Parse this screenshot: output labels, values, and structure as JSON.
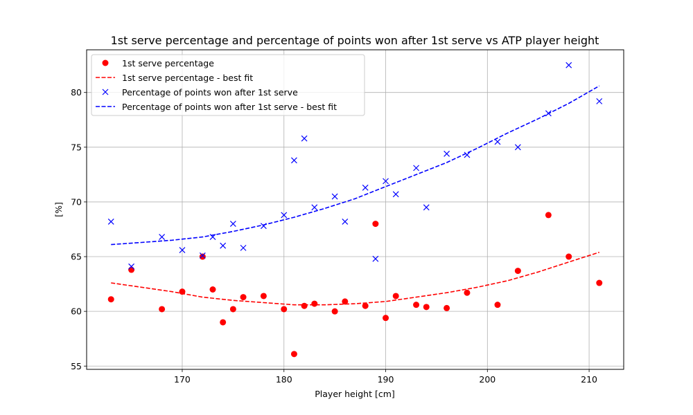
{
  "chart_data": {
    "type": "scatter",
    "title": "1st serve percentage and percentage of points won after 1st serve vs ATP player height",
    "xlabel": "Player height [cm]",
    "ylabel": "[%]",
    "xlim": [
      160.6,
      213.4
    ],
    "ylim": [
      54.7,
      83.9
    ],
    "xticks": [
      170,
      180,
      190,
      200,
      210
    ],
    "yticks": [
      55,
      60,
      65,
      70,
      75,
      80
    ],
    "grid": true,
    "legend_position": "top-left",
    "series": [
      {
        "name": "1st serve percentage",
        "kind": "scatter",
        "marker": "circle",
        "color": "#ff0000",
        "points": [
          [
            163,
            61.1
          ],
          [
            165,
            63.8
          ],
          [
            168,
            60.2
          ],
          [
            170,
            61.8
          ],
          [
            172,
            65.0
          ],
          [
            173,
            62.0
          ],
          [
            174,
            59.0
          ],
          [
            175,
            60.2
          ],
          [
            176,
            61.3
          ],
          [
            178,
            61.4
          ],
          [
            180,
            60.2
          ],
          [
            181,
            56.1
          ],
          [
            182,
            60.5
          ],
          [
            183,
            60.7
          ],
          [
            185,
            60.0
          ],
          [
            186,
            60.9
          ],
          [
            188,
            60.5
          ],
          [
            189,
            68.0
          ],
          [
            190,
            59.4
          ],
          [
            191,
            61.4
          ],
          [
            193,
            60.6
          ],
          [
            194,
            60.4
          ],
          [
            196,
            60.3
          ],
          [
            198,
            61.7
          ],
          [
            201,
            60.6
          ],
          [
            203,
            63.7
          ],
          [
            206,
            68.8
          ],
          [
            208,
            65.0
          ],
          [
            211,
            62.6
          ]
        ]
      },
      {
        "name": "1st serve percentage - best fit",
        "kind": "line",
        "style": "dashed",
        "color": "#ff0000",
        "points": [
          [
            163,
            62.6
          ],
          [
            166,
            62.2
          ],
          [
            169,
            61.8
          ],
          [
            172,
            61.3
          ],
          [
            175,
            61.0
          ],
          [
            178,
            60.8
          ],
          [
            181,
            60.6
          ],
          [
            184,
            60.6
          ],
          [
            187,
            60.7
          ],
          [
            190,
            60.9
          ],
          [
            193,
            61.3
          ],
          [
            196,
            61.7
          ],
          [
            199,
            62.2
          ],
          [
            202,
            62.8
          ],
          [
            205,
            63.6
          ],
          [
            208,
            64.5
          ],
          [
            211,
            65.4
          ]
        ]
      },
      {
        "name": "Percentage of points won after 1st serve",
        "kind": "scatter",
        "marker": "x",
        "color": "#0000ff",
        "points": [
          [
            163,
            68.2
          ],
          [
            165,
            64.1
          ],
          [
            168,
            66.8
          ],
          [
            170,
            65.6
          ],
          [
            172,
            65.1
          ],
          [
            173,
            66.8
          ],
          [
            174,
            66.0
          ],
          [
            175,
            68.0
          ],
          [
            176,
            65.8
          ],
          [
            178,
            67.8
          ],
          [
            180,
            68.8
          ],
          [
            181,
            73.8
          ],
          [
            182,
            75.8
          ],
          [
            183,
            69.5
          ],
          [
            185,
            70.5
          ],
          [
            186,
            68.2
          ],
          [
            188,
            71.3
          ],
          [
            189,
            64.8
          ],
          [
            190,
            71.9
          ],
          [
            191,
            70.7
          ],
          [
            193,
            73.1
          ],
          [
            194,
            69.5
          ],
          [
            196,
            74.4
          ],
          [
            198,
            74.3
          ],
          [
            201,
            75.5
          ],
          [
            203,
            75.0
          ],
          [
            206,
            78.1
          ],
          [
            208,
            82.5
          ],
          [
            211,
            79.2
          ]
        ]
      },
      {
        "name": "Percentage of points won after 1st serve - best fit",
        "kind": "line",
        "style": "dashed",
        "color": "#0000ff",
        "points": [
          [
            163,
            66.1
          ],
          [
            166,
            66.3
          ],
          [
            169,
            66.5
          ],
          [
            172,
            66.8
          ],
          [
            175,
            67.3
          ],
          [
            178,
            67.9
          ],
          [
            181,
            68.6
          ],
          [
            184,
            69.4
          ],
          [
            187,
            70.3
          ],
          [
            190,
            71.4
          ],
          [
            193,
            72.5
          ],
          [
            196,
            73.6
          ],
          [
            199,
            74.9
          ],
          [
            202,
            76.3
          ],
          [
            205,
            77.6
          ],
          [
            208,
            79.0
          ],
          [
            211,
            80.6
          ]
        ]
      }
    ]
  }
}
